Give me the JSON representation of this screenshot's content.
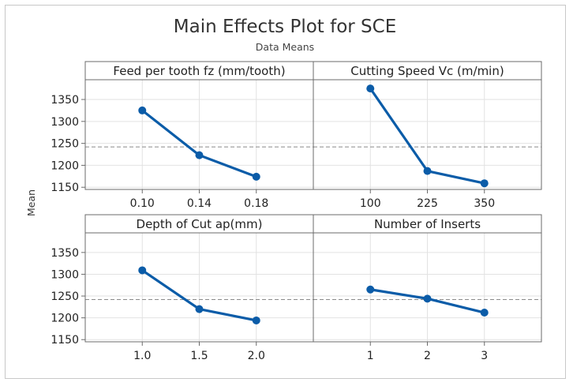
{
  "title": "Main Effects Plot for SCE",
  "subtitle": "Data Means",
  "ylabel": "Mean",
  "colors": {
    "line": "#0b5ca8",
    "grid": "#e2e2e2",
    "border": "#6b6b6b",
    "reference": "#8a8a8a",
    "text": "#222222"
  },
  "chart_data": {
    "type": "line",
    "title": "Main Effects Plot for SCE",
    "subtitle": "Data Means",
    "ylabel": "Mean",
    "ylim": [
      1145,
      1395
    ],
    "yticks": [
      1150,
      1200,
      1250,
      1300,
      1350
    ],
    "overall_mean": 1242,
    "panels": [
      {
        "title": "Feed per tooth fz (mm/tooth)",
        "categories": [
          "0.10",
          "0.14",
          "0.18"
        ],
        "values": [
          1325,
          1223,
          1174
        ]
      },
      {
        "title": "Cutting Speed Vc (m/min)",
        "categories": [
          "100",
          "225",
          "350"
        ],
        "values": [
          1375,
          1187,
          1159
        ]
      },
      {
        "title": "Depth of Cut ap(mm)",
        "categories": [
          "1.0",
          "1.5",
          "2.0"
        ],
        "values": [
          1309,
          1220,
          1194
        ]
      },
      {
        "title": "Number of Inserts",
        "categories": [
          "1",
          "2",
          "3"
        ],
        "values": [
          1265,
          1244,
          1212
        ]
      }
    ]
  }
}
